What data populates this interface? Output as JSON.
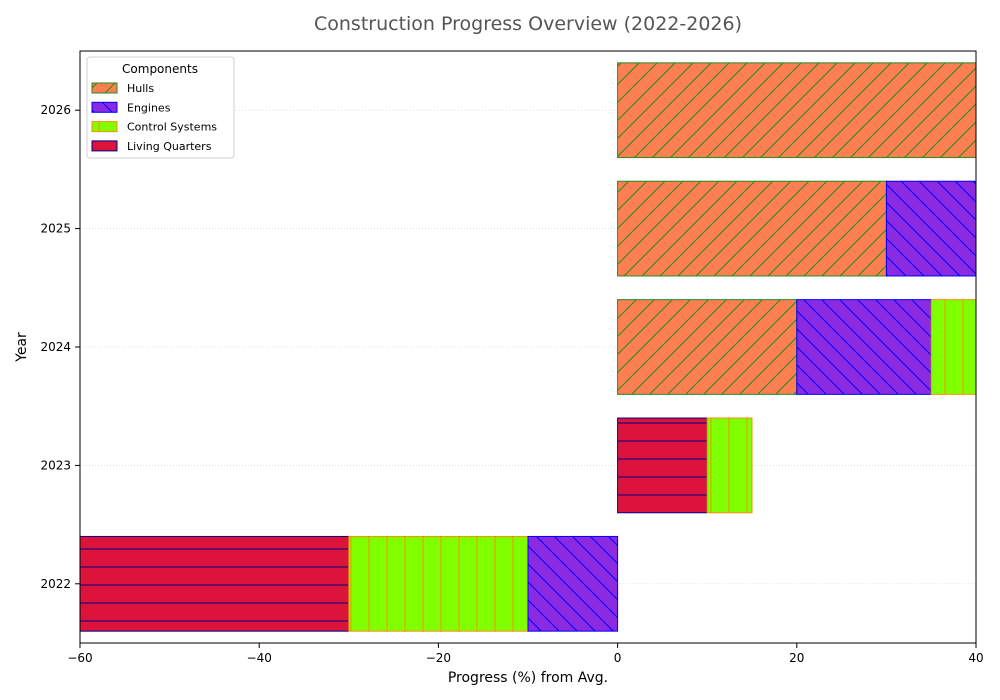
{
  "chart_data": {
    "type": "bar",
    "orientation": "horizontal",
    "stacked": true,
    "title": "Construction Progress Overview (2022-2026)",
    "xlabel": "Progress (%) from Avg.",
    "ylabel": "Year",
    "xlim": [
      -60,
      40
    ],
    "x_ticks": [
      -60,
      -40,
      -20,
      0,
      20,
      40
    ],
    "categories": [
      "2022",
      "2023",
      "2024",
      "2025",
      "2026"
    ],
    "legend": {
      "title": "Components",
      "placement": "top-left",
      "entries": [
        "Hulls",
        "Engines",
        "Control Systems",
        "Living Quarters"
      ]
    },
    "grid": "horizontal-dotted",
    "segments": [
      {
        "category": "2022",
        "series": "Living Quarters",
        "start": -60,
        "end": -30
      },
      {
        "category": "2022",
        "series": "Control Systems",
        "start": -30,
        "end": -10
      },
      {
        "category": "2022",
        "series": "Engines",
        "start": -10,
        "end": 0
      },
      {
        "category": "2023",
        "series": "Living Quarters",
        "start": 0,
        "end": 10
      },
      {
        "category": "2023",
        "series": "Control Systems",
        "start": 10,
        "end": 15
      },
      {
        "category": "2024",
        "series": "Hulls",
        "start": 0,
        "end": 20
      },
      {
        "category": "2024",
        "series": "Engines",
        "start": 20,
        "end": 35
      },
      {
        "category": "2024",
        "series": "Control Systems",
        "start": 35,
        "end": 40
      },
      {
        "category": "2025",
        "series": "Hulls",
        "start": 0,
        "end": 30
      },
      {
        "category": "2025",
        "series": "Engines",
        "start": 30,
        "end": 40
      },
      {
        "category": "2026",
        "series": "Hulls",
        "start": 0,
        "end": 40
      }
    ],
    "series_styles": {
      "Hulls": {
        "fill": "#ff7f50",
        "edge": "#228b22",
        "hatch": "/"
      },
      "Engines": {
        "fill": "#8a2be2",
        "edge": "#0000ff",
        "hatch": "\\"
      },
      "Control Systems": {
        "fill": "#7fff00",
        "edge": "#ff8c00",
        "hatch": "|"
      },
      "Living Quarters": {
        "fill": "#dc143c",
        "edge": "#00008b",
        "hatch": "-"
      }
    }
  }
}
